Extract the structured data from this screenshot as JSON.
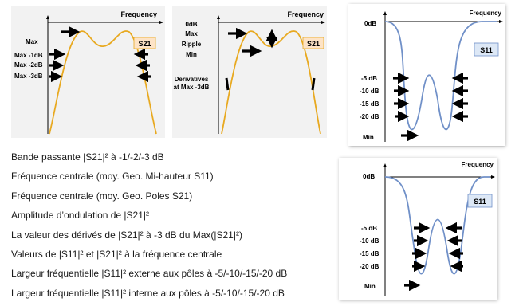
{
  "colors": {
    "s21_curve": "#E8A920",
    "s11_curve": "#7090C8",
    "s21_tag_fill": "#FDE3C6",
    "s11_tag_fill": "#DDE8F6",
    "panel_bg": "#F2F2F2"
  },
  "diagrams": {
    "s21_levels": {
      "axis_label": "Frequency",
      "tag": "S21",
      "labels": [
        "Max",
        "Max -1dB",
        "Max -2dB",
        "Max -3dB"
      ]
    },
    "s21_ripple": {
      "axis_label": "Frequency",
      "tag": "S21",
      "labels": [
        "0dB",
        "Max",
        "Ripple",
        "Min"
      ],
      "derivatives_label_1": "Derivatives",
      "derivatives_label_2": "at Max -3dB"
    },
    "s11_external": {
      "axis_label": "Frequency",
      "top_label": "0dB",
      "tag": "S11",
      "levels": [
        "-5 dB",
        "-10 dB",
        "-15 dB",
        "-20 dB"
      ],
      "min_label": "Min"
    },
    "s11_internal": {
      "axis_label": "Frequency",
      "top_label": "0dB",
      "tag": "S11",
      "levels": [
        "-5 dB",
        "-10 dB",
        "-15 dB",
        "-20 dB"
      ],
      "min_label": "Min"
    }
  },
  "list": [
    "Bande passante |S21|² à -1/-2/-3 dB",
    "Fréquence centrale (moy. Geo. Mi-hauteur S11)",
    "Fréquence centrale (moy. Geo. Poles S21)",
    "Amplitude d’ondulation de |S21|²",
    "La valeur des dérivés de |S21|² à -3 dB du Max(|S21|²)",
    "Valeurs de |S11|² et |S21|² à la fréquence centrale",
    "Largeur fréquentielle |S11|² externe aux pôles à -5/-10/-15/-20 dB",
    "Largeur fréquentielle |S11|² interne aux pôles à -5/-10/-15/-20 dB"
  ]
}
